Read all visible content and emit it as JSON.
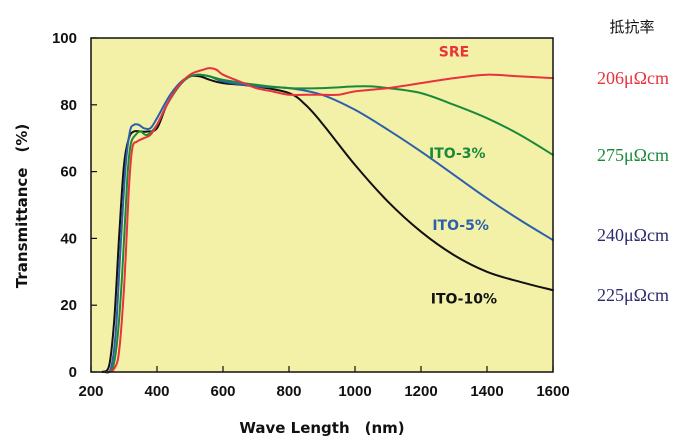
{
  "chart_data": {
    "type": "line",
    "title": "",
    "xlabel": "Wave Length　(nm)",
    "ylabel": "Transmittance　(%)",
    "xlim": [
      200,
      1600
    ],
    "ylim": [
      0,
      100
    ],
    "xticks": [
      200,
      400,
      600,
      800,
      1000,
      1200,
      1400,
      1600
    ],
    "yticks": [
      0,
      20,
      40,
      60,
      80,
      100
    ],
    "grid": false,
    "plot_background": "#f3f0a8",
    "resistivity_header": "抵抗率",
    "series": [
      {
        "name": "SRE",
        "color": "#e8323c",
        "resistivity": "206μΩcm",
        "resistivity_color": "#e8323c",
        "x": [
          250,
          270,
          285,
          300,
          315,
          325,
          340,
          360,
          380,
          400,
          430,
          460,
          500,
          540,
          560,
          580,
          600,
          650,
          700,
          750,
          800,
          850,
          900,
          950,
          1000,
          1100,
          1200,
          1300,
          1400,
          1500,
          1600
        ],
        "y": [
          0,
          1,
          6,
          25,
          55,
          67,
          69,
          70,
          71,
          74,
          80,
          85,
          89,
          90.5,
          91,
          90.5,
          89,
          87,
          85,
          84,
          83,
          83,
          83,
          83,
          84,
          85,
          86.5,
          88,
          89,
          88.5,
          88
        ]
      },
      {
        "name": "ITO-3%",
        "color": "#1a8a3a",
        "resistivity": "275μΩcm",
        "resistivity_color": "#1a8a3a",
        "x": [
          245,
          265,
          280,
          295,
          310,
          320,
          335,
          350,
          370,
          400,
          430,
          470,
          500,
          530,
          560,
          600,
          700,
          800,
          900,
          1000,
          1050,
          1100,
          1200,
          1300,
          1400,
          1500,
          1600
        ],
        "y": [
          0,
          1,
          10,
          30,
          58,
          68,
          71,
          72,
          71,
          74,
          80,
          86,
          88.5,
          89,
          88.5,
          87.5,
          86,
          85,
          85,
          85.5,
          85.5,
          85,
          83.5,
          80,
          76,
          71,
          65
        ]
      },
      {
        "name": "ITO-5%",
        "color": "#2c60ad",
        "resistivity": "240μΩcm",
        "resistivity_color": "#2c2c6e",
        "x": [
          240,
          260,
          275,
          290,
          305,
          318,
          330,
          345,
          360,
          380,
          400,
          440,
          480,
          520,
          560,
          600,
          700,
          800,
          900,
          1000,
          1100,
          1200,
          1300,
          1400,
          1500,
          1600
        ],
        "y": [
          0,
          1,
          12,
          38,
          62,
          72,
          74,
          74,
          73,
          73,
          76,
          83,
          87.5,
          89,
          88.5,
          87,
          85.5,
          85,
          83,
          78.5,
          72.5,
          66,
          59,
          52,
          45.5,
          39.5
        ]
      },
      {
        "name": "ITO-10%",
        "color": "#111111",
        "resistivity": "225μΩcm",
        "resistivity_color": "#2c2c6e",
        "x": [
          235,
          255,
          270,
          285,
          300,
          315,
          330,
          350,
          370,
          400,
          430,
          470,
          500,
          530,
          560,
          600,
          700,
          800,
          850,
          900,
          1000,
          1100,
          1200,
          1300,
          1400,
          1500,
          1600
        ],
        "y": [
          0,
          2,
          15,
          40,
          62,
          70,
          72,
          72,
          72,
          73,
          80,
          86,
          88.5,
          88.5,
          87.5,
          86.5,
          85.5,
          83.5,
          80,
          74.5,
          62,
          51,
          42,
          35,
          30,
          27,
          24.5
        ]
      }
    ]
  }
}
